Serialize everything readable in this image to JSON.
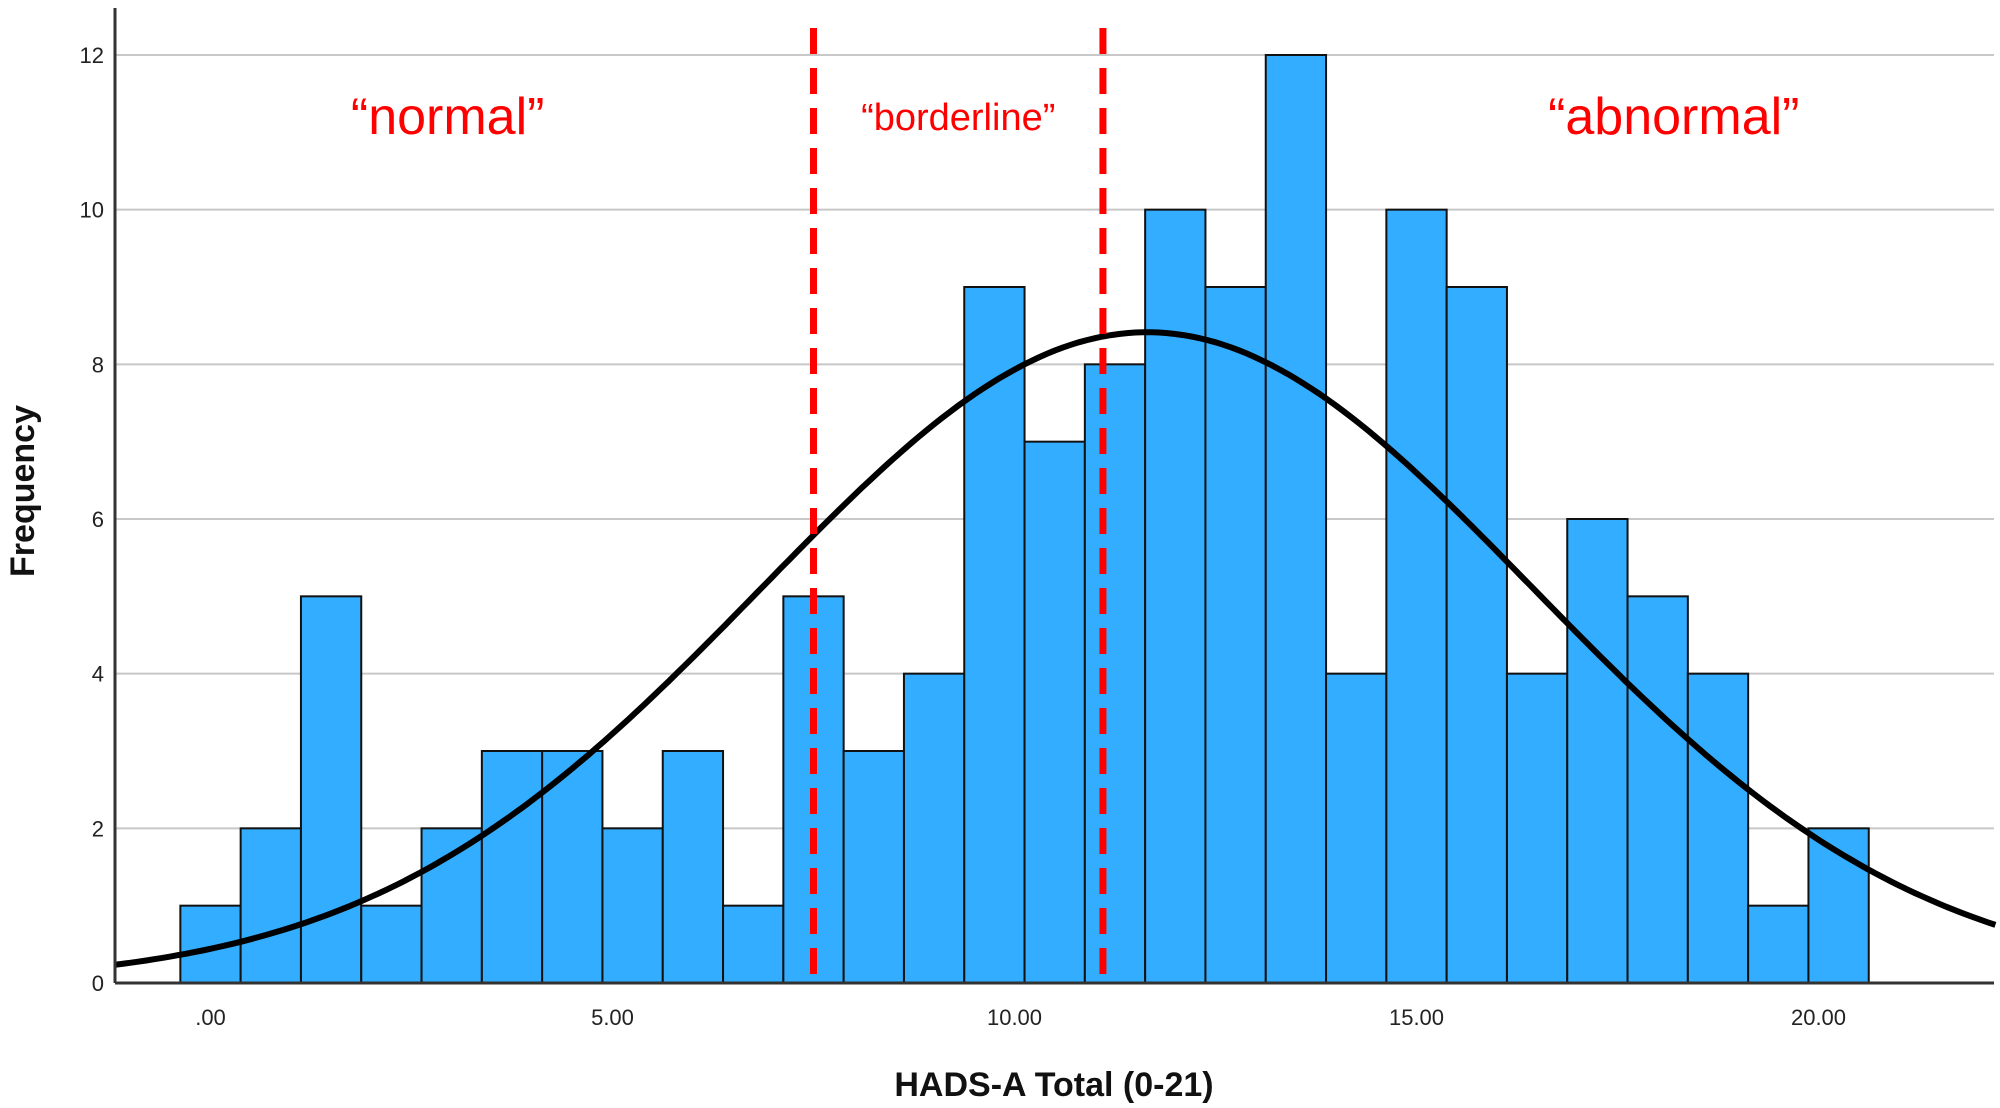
{
  "chart_data": {
    "type": "bar",
    "subtype": "histogram",
    "xlabel": "HADS-A Total (0-21)",
    "ylabel": "Frequency",
    "xlim": [
      -1.2,
      22.2
    ],
    "ylim": [
      0,
      12.5
    ],
    "x_ticks": [
      0,
      5,
      10,
      15,
      20
    ],
    "x_tick_labels": [
      ".00",
      "5.00",
      "10.00",
      "15.00",
      "20.00"
    ],
    "y_ticks": [
      0,
      2,
      4,
      6,
      8,
      10,
      12
    ],
    "y_tick_labels": [
      "0",
      "2",
      "4",
      "6",
      "8",
      "10",
      "12"
    ],
    "grid": "horizontal",
    "bin_width": 0.75,
    "bin_centers": [
      0,
      0.75,
      1.5,
      2.25,
      3,
      3.75,
      4.5,
      5.25,
      6,
      6.75,
      7.5,
      8.25,
      9,
      9.75,
      10.5,
      11.25,
      12,
      12.75,
      13.5,
      14.25,
      15,
      15.75,
      16.5,
      17.25,
      18,
      18.75,
      19.5,
      20.25
    ],
    "values": [
      1,
      2,
      5,
      1,
      2,
      3,
      3,
      2,
      3,
      1,
      5,
      3,
      4,
      9,
      7,
      8,
      10,
      9,
      12,
      4,
      10,
      9,
      4,
      6,
      5,
      4,
      1,
      2
    ],
    "bar_color": "#33adff",
    "normal_curve": {
      "mean": 11.65,
      "sd": 4.8,
      "n": 135,
      "color": "#000000"
    },
    "cutoffs": [
      7.5,
      11.1
    ],
    "cutoff_color": "#ff0000",
    "annotations": [
      {
        "text": "“normal”",
        "x": 2.95
      },
      {
        "text": "“borderline”",
        "x": 9.3
      },
      {
        "text": "“abnormal”",
        "x": 18.2
      }
    ]
  }
}
